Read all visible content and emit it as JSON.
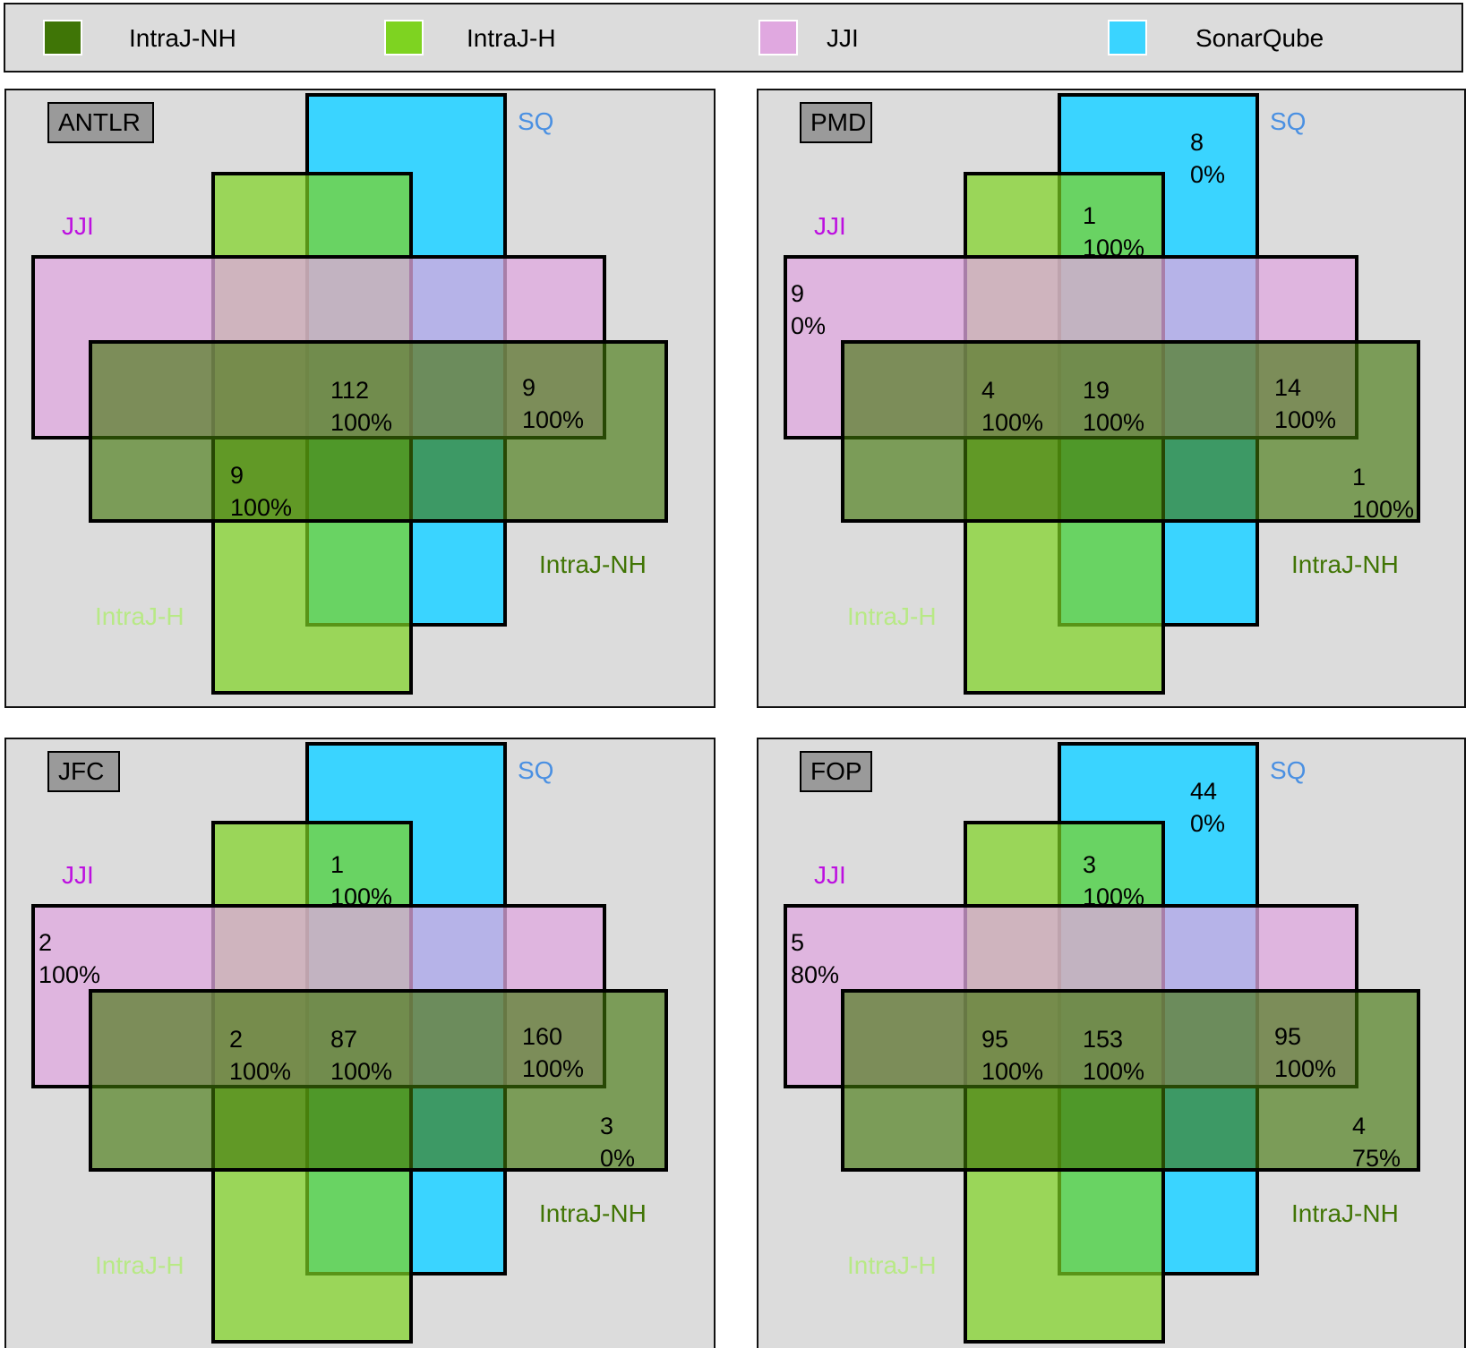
{
  "legend": [
    {
      "label": "IntraJ-NH",
      "color": "#3f7506"
    },
    {
      "label": "IntraJ-H",
      "color": "#7ed321"
    },
    {
      "label": "JJI",
      "color": "#e0a8e0"
    },
    {
      "label": "SonarQube",
      "color": "#3ad4ff"
    }
  ],
  "set_colors": {
    "sq": "#3ad4ff",
    "h": "#7ed321",
    "jji": "#e0a8e0",
    "nh": "#3f7506"
  },
  "set_labels": {
    "sq": "SQ",
    "jji": "JJI",
    "h": "IntraJ-H",
    "nh": "IntraJ-NH"
  },
  "label_colors": {
    "sq": "#4a90e2",
    "jji": "#bd10e0",
    "h": "#b8e986",
    "nh": "#417505"
  },
  "panels": [
    {
      "name": "ANTLR",
      "regions": [
        {
          "sets": [
            "jji",
            "nh",
            "sq",
            "h"
          ],
          "count": "112",
          "pct": "100%"
        },
        {
          "sets": [
            "jji",
            "nh"
          ],
          "count": "9",
          "pct": "100%"
        },
        {
          "sets": [
            "nh",
            "h"
          ],
          "count": "9",
          "pct": "100%"
        }
      ]
    },
    {
      "name": "PMD",
      "regions": [
        {
          "sets": [
            "sq"
          ],
          "count": "8",
          "pct": "0%"
        },
        {
          "sets": [
            "sq",
            "h"
          ],
          "count": "1",
          "pct": "100%"
        },
        {
          "sets": [
            "jji"
          ],
          "count": "9",
          "pct": "0%"
        },
        {
          "sets": [
            "jji",
            "nh",
            "h"
          ],
          "count": "4",
          "pct": "100%"
        },
        {
          "sets": [
            "jji",
            "nh",
            "sq",
            "h"
          ],
          "count": "19",
          "pct": "100%"
        },
        {
          "sets": [
            "jji",
            "nh"
          ],
          "count": "14",
          "pct": "100%"
        },
        {
          "sets": [
            "nh"
          ],
          "count": "1",
          "pct": "100%"
        }
      ]
    },
    {
      "name": "JFC",
      "regions": [
        {
          "sets": [
            "sq",
            "h"
          ],
          "count": "1",
          "pct": "100%"
        },
        {
          "sets": [
            "jji"
          ],
          "count": "2",
          "pct": "100%"
        },
        {
          "sets": [
            "jji",
            "nh",
            "h"
          ],
          "count": "2",
          "pct": "100%"
        },
        {
          "sets": [
            "jji",
            "nh",
            "sq",
            "h"
          ],
          "count": "87",
          "pct": "100%"
        },
        {
          "sets": [
            "jji",
            "nh"
          ],
          "count": "160",
          "pct": "100%"
        },
        {
          "sets": [
            "nh"
          ],
          "count": "3",
          "pct": "0%"
        }
      ]
    },
    {
      "name": "FOP",
      "regions": [
        {
          "sets": [
            "sq"
          ],
          "count": "44",
          "pct": "0%"
        },
        {
          "sets": [
            "sq",
            "h"
          ],
          "count": "3",
          "pct": "100%"
        },
        {
          "sets": [
            "jji"
          ],
          "count": "5",
          "pct": "80%"
        },
        {
          "sets": [
            "jji",
            "nh",
            "h"
          ],
          "count": "95",
          "pct": "100%"
        },
        {
          "sets": [
            "jji",
            "nh",
            "sq",
            "h"
          ],
          "count": "153",
          "pct": "100%"
        },
        {
          "sets": [
            "jji",
            "nh"
          ],
          "count": "95",
          "pct": "100%"
        },
        {
          "sets": [
            "nh"
          ],
          "count": "4",
          "pct": "75%"
        }
      ]
    }
  ]
}
